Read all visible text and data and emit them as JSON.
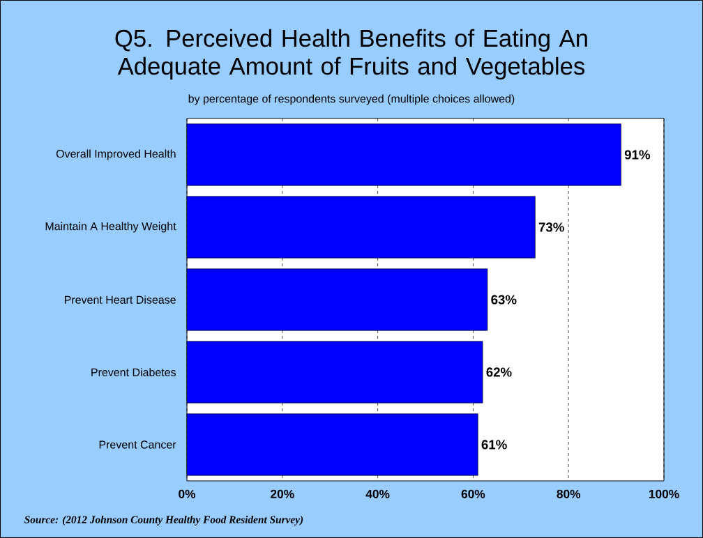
{
  "chart_data": {
    "type": "bar",
    "orientation": "horizontal",
    "title": "Q5. Perceived Health Benefits of Eating An Adequate Amount of Fruits and Vegetables",
    "subtitle": "by percentage of respondents surveyed (multiple choices allowed)",
    "categories": [
      "Overall Improved Health",
      "Maintain A Healthy Weight",
      "Prevent Heart Disease",
      "Prevent Diabetes",
      "Prevent Cancer"
    ],
    "values": [
      91,
      73,
      63,
      62,
      61
    ],
    "value_labels": [
      "91%",
      "73%",
      "63%",
      "62%",
      "61%"
    ],
    "color": "#0000ff",
    "xlim": [
      0,
      100
    ],
    "xticks": [
      {
        "value": 0,
        "label": "0%"
      },
      {
        "value": 20,
        "label": "20%"
      },
      {
        "value": 40,
        "label": "40%"
      },
      {
        "value": 60,
        "label": "60%"
      },
      {
        "value": 80,
        "label": "80%"
      },
      {
        "value": 100,
        "label": "100%"
      }
    ],
    "grid": "x",
    "annotations": [
      "Source: (2012 Johnson County Healthy Food Resident Survey)"
    ]
  }
}
